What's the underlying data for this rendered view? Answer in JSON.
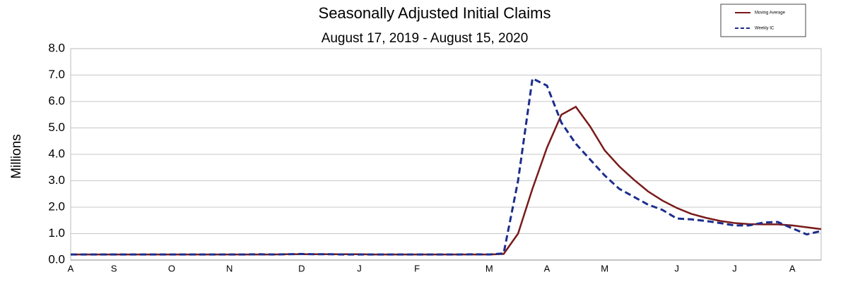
{
  "chart_data": {
    "type": "line",
    "title": "Seasonally Adjusted Initial Claims",
    "subtitle": "August 17, 2019 - August 15, 2020",
    "y_label": "Millions",
    "categories": [
      "A",
      null,
      null,
      "S",
      null,
      null,
      null,
      "O",
      null,
      null,
      null,
      "N",
      null,
      null,
      null,
      null,
      "D",
      null,
      null,
      null,
      "J",
      null,
      null,
      null,
      "F",
      null,
      null,
      null,
      null,
      "M",
      null,
      null,
      null,
      "A",
      null,
      null,
      null,
      "M",
      null,
      null,
      null,
      null,
      "J",
      null,
      null,
      null,
      "J",
      null,
      null,
      null,
      "A",
      null,
      null
    ],
    "series": [
      {
        "name": "Moving Average",
        "color": "#7a1a1a",
        "dash": false,
        "values": [
          0.21,
          0.21,
          0.21,
          0.21,
          0.21,
          0.21,
          0.21,
          0.21,
          0.21,
          0.21,
          0.21,
          0.21,
          0.21,
          0.21,
          0.21,
          0.22,
          0.22,
          0.22,
          0.22,
          0.22,
          0.22,
          0.21,
          0.21,
          0.21,
          0.21,
          0.21,
          0.21,
          0.21,
          0.21,
          0.21,
          0.23,
          1.0,
          2.7,
          4.25,
          5.5,
          5.8,
          5.05,
          4.15,
          3.55,
          3.05,
          2.6,
          2.25,
          1.97,
          1.75,
          1.6,
          1.48,
          1.4,
          1.36,
          1.35,
          1.35,
          1.31,
          1.24,
          1.17
        ]
      },
      {
        "name": "Weekly IC",
        "color": "#1c2d8c",
        "dash": true,
        "values": [
          0.21,
          0.21,
          0.21,
          0.21,
          0.21,
          0.21,
          0.21,
          0.21,
          0.21,
          0.21,
          0.21,
          0.21,
          0.21,
          0.22,
          0.21,
          0.22,
          0.23,
          0.22,
          0.22,
          0.21,
          0.21,
          0.21,
          0.21,
          0.21,
          0.21,
          0.21,
          0.21,
          0.21,
          0.22,
          0.21,
          0.25,
          3.0,
          6.87,
          6.6,
          5.2,
          4.4,
          3.8,
          3.2,
          2.7,
          2.4,
          2.1,
          1.9,
          1.57,
          1.54,
          1.48,
          1.4,
          1.31,
          1.31,
          1.42,
          1.44,
          1.2,
          0.97,
          1.1
        ]
      }
    ],
    "ylim": [
      0,
      8
    ],
    "yticks": [
      {
        "value": 0,
        "label": "0.0"
      },
      {
        "value": 1,
        "label": "1.0"
      },
      {
        "value": 2,
        "label": "2.0"
      },
      {
        "value": 3,
        "label": "3.0"
      },
      {
        "value": 4,
        "label": "4.0"
      },
      {
        "value": 5,
        "label": "5.0"
      },
      {
        "value": 6,
        "label": "6.0"
      },
      {
        "value": 7,
        "label": "7.0"
      },
      {
        "value": 8,
        "label": "8.0"
      }
    ],
    "grid": true,
    "legend": "top-right"
  }
}
